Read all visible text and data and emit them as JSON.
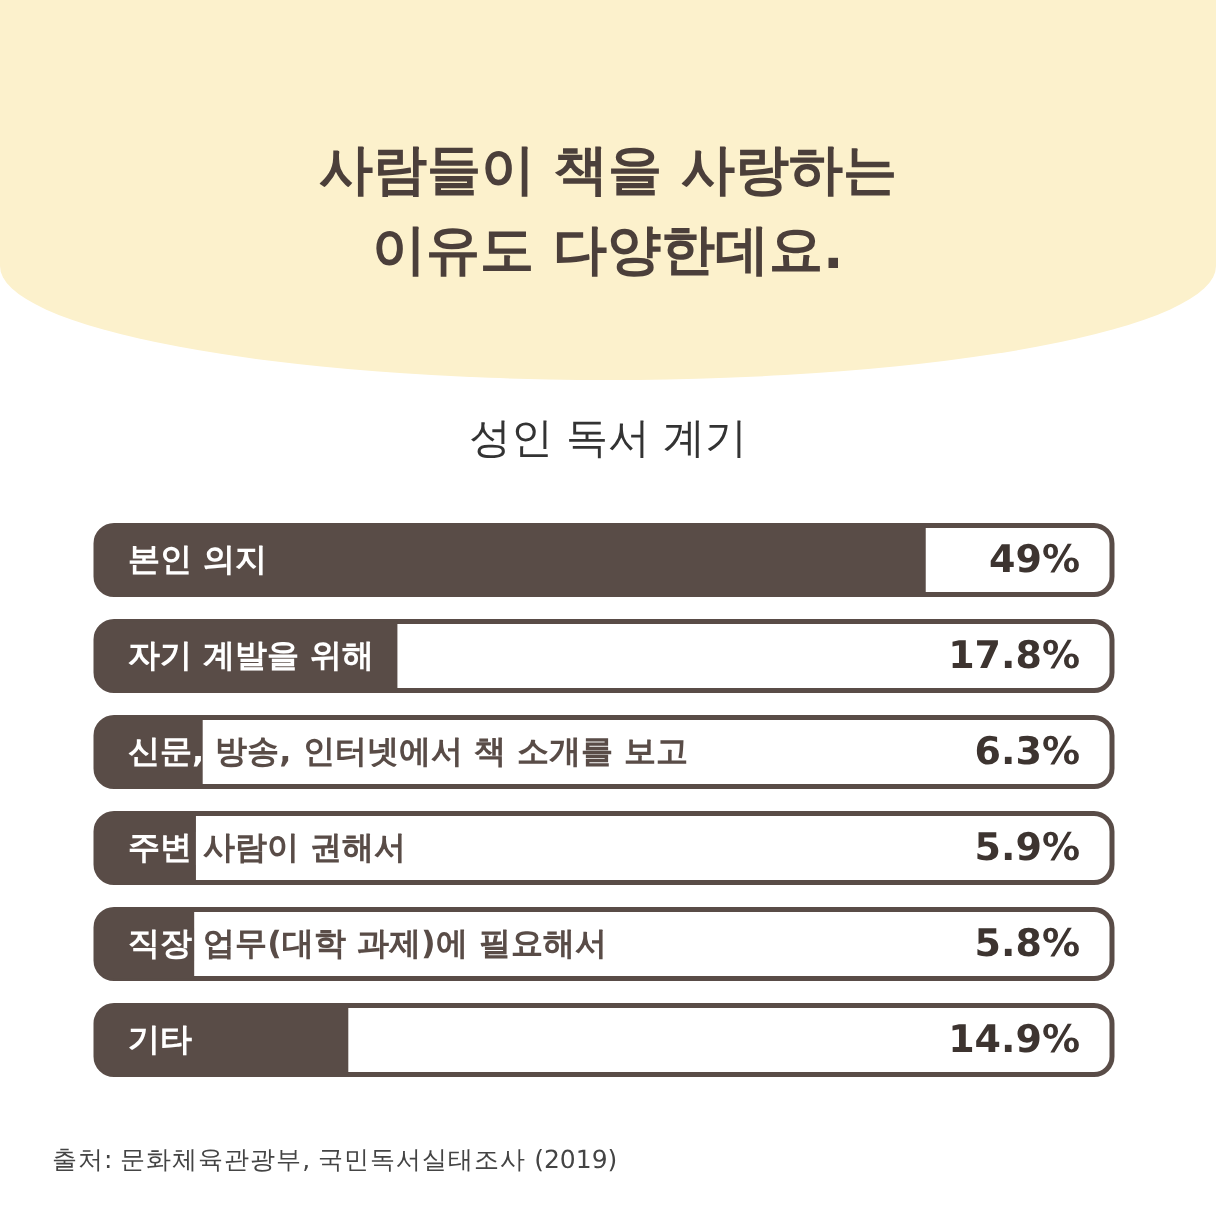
{
  "chart_data": {
    "type": "bar",
    "orientation": "horizontal",
    "tick_labels": "y",
    "title": "사람들이 책을 사랑하는\n이유도 다양한데요.",
    "subtitle": "성인 독서 계기",
    "categories": [
      "본인 의지",
      "자기 계발을 위해",
      "신문, 방송, 인터넷에서 책 소개를 보고",
      "주변 사람이 권해서",
      "직장 업무(대학 과제)에 필요해서",
      "기타"
    ],
    "values": [
      49,
      17.8,
      6.3,
      5.9,
      5.8,
      14.9
    ],
    "value_labels": [
      "49%",
      "17.8%",
      "6.3%",
      "5.9%",
      "5.8%",
      "14.9%"
    ],
    "color": "#594c47",
    "annotations": [
      "출처: 문화체육관광부, 국민독서실태조사 (2019)"
    ]
  }
}
